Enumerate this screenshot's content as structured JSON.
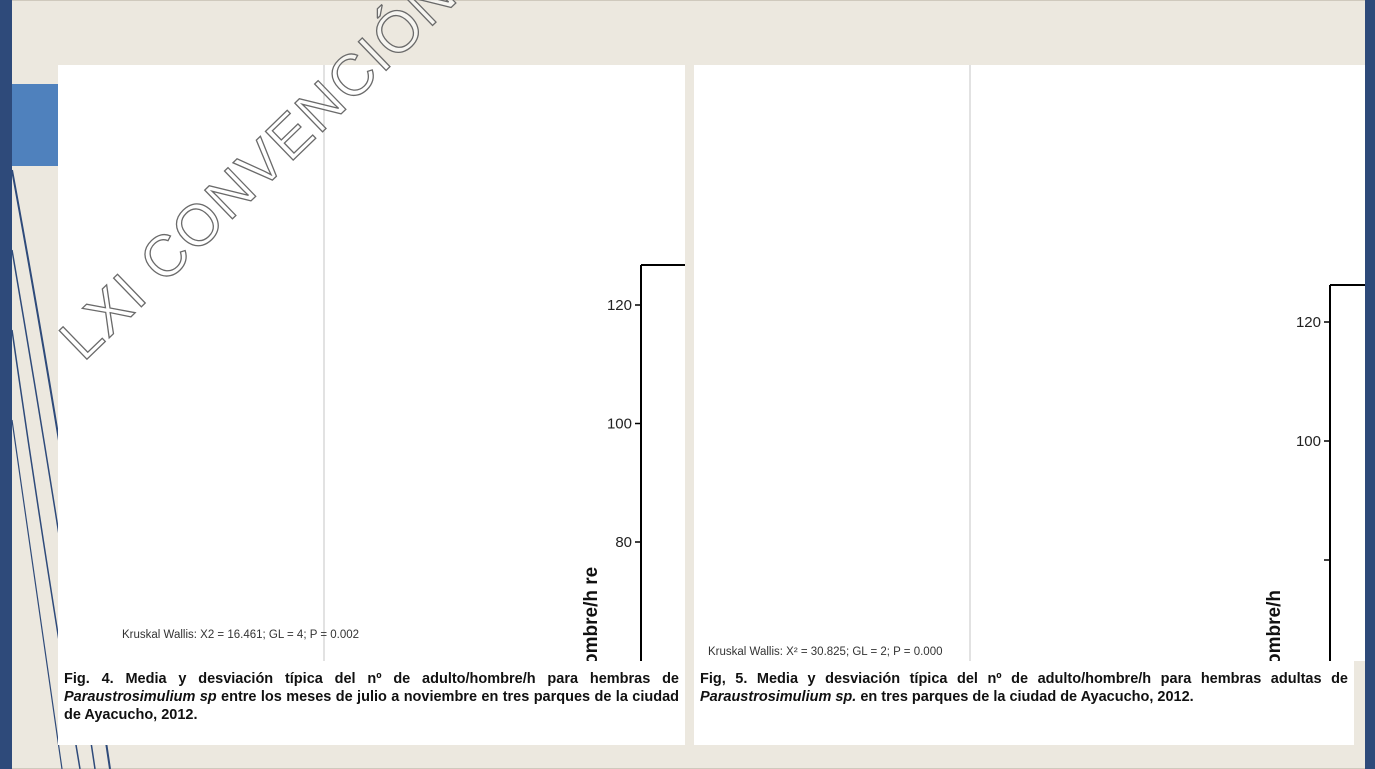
{
  "slide": {
    "watermark": "LXI CONVENCIÓN NACIONAL",
    "accent_color": "#4f81bd",
    "background_color": "#ece8df",
    "decoration_line_color": "#2e4a7a"
  },
  "figure4": {
    "stats": "Kruskal Wallis: X2 = 16.461; GL = 4; P = 0.002",
    "caption": {
      "prefix": "Fig. 4. Media y desviación típica del nº de adulto/hombre/h para hembras de ",
      "species": "Paraustrosimulium sp",
      "suffix": " entre los meses de julio a noviembre en tres parques de la ciudad de Ayacucho, 2012."
    }
  },
  "figure5": {
    "stats": "Kruskal Wallis: X² = 30.825; GL = 2; P = 0.000",
    "caption": {
      "prefix": "Fig, 5. Media y desviación típica del nº de adulto/hombre/h para hembras adultas de ",
      "species": "Paraustrosimulium sp.",
      "suffix": " en tres parques de la ciudad de Ayacucho, 2012."
    }
  },
  "chart_data": [
    {
      "type": "bar",
      "yticks": [
        80,
        100,
        120
      ],
      "ylabel": "ombre/h    re",
      "ylim": [
        60,
        126
      ],
      "grid": false
    },
    {
      "type": "bar",
      "yticks": [
        100,
        120
      ],
      "ylabel": "ombre/h",
      "ylim": [
        62,
        126
      ],
      "grid": false
    }
  ]
}
